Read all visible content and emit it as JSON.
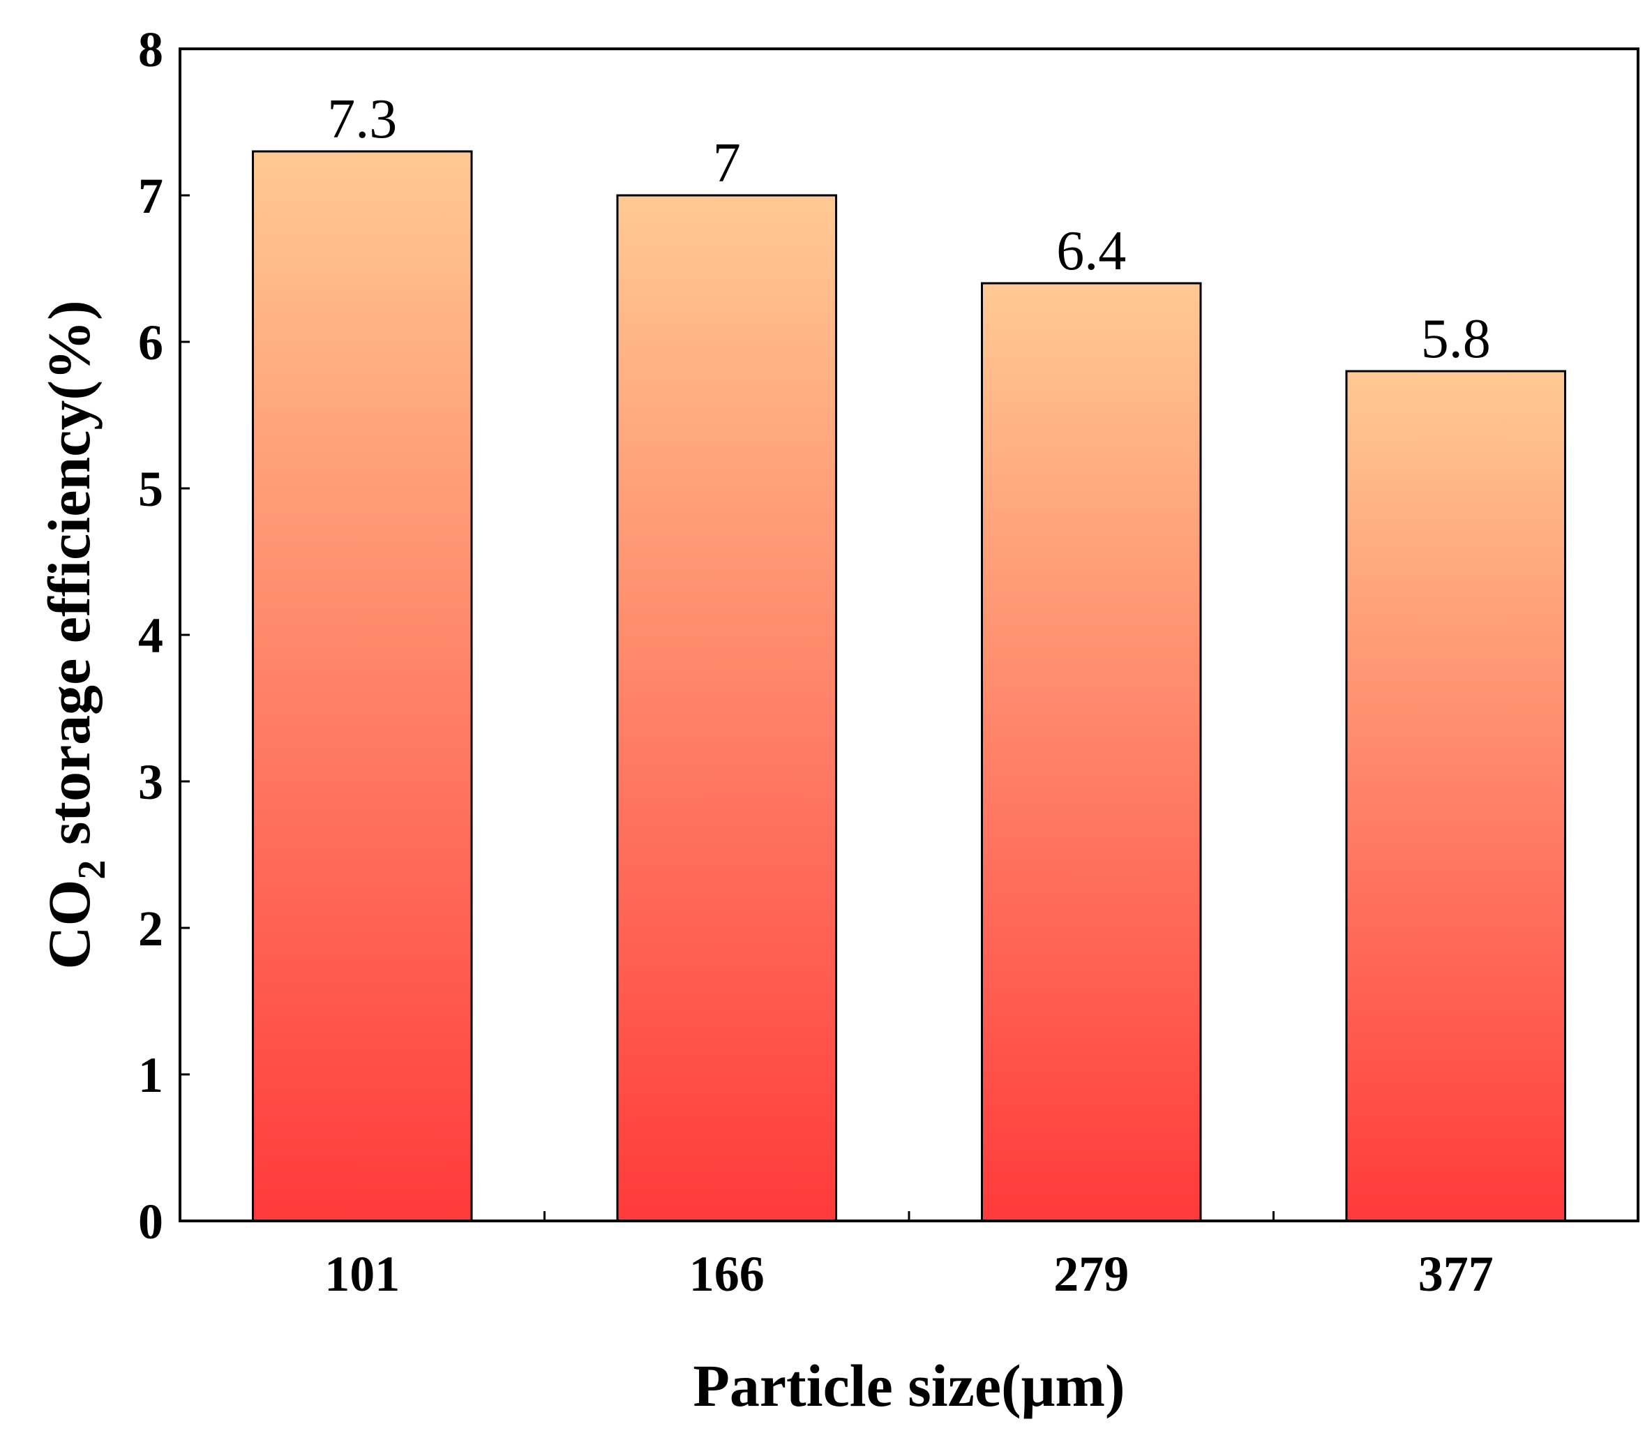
{
  "chart_data": {
    "type": "bar",
    "title": "",
    "xlabel": "Particle size(μm)",
    "ylabel_main": "CO",
    "ylabel_sub": "2",
    "ylabel_rest": " storage efficiency(%)",
    "categories": [
      "101",
      "166",
      "279",
      "377"
    ],
    "values": [
      7.3,
      7,
      6.4,
      5.8
    ],
    "data_labels": [
      "7.3",
      "7",
      "6.4",
      "5.8"
    ],
    "ylim": [
      0,
      8
    ],
    "yticks": [
      "0",
      "1",
      "2",
      "3",
      "4",
      "5",
      "6",
      "7",
      "8"
    ],
    "grid": false,
    "legend": "none",
    "bar_gradient": {
      "top": "#FFC994",
      "bottom": "#FF3A3A"
    },
    "bar_edge_color": "#000000"
  }
}
